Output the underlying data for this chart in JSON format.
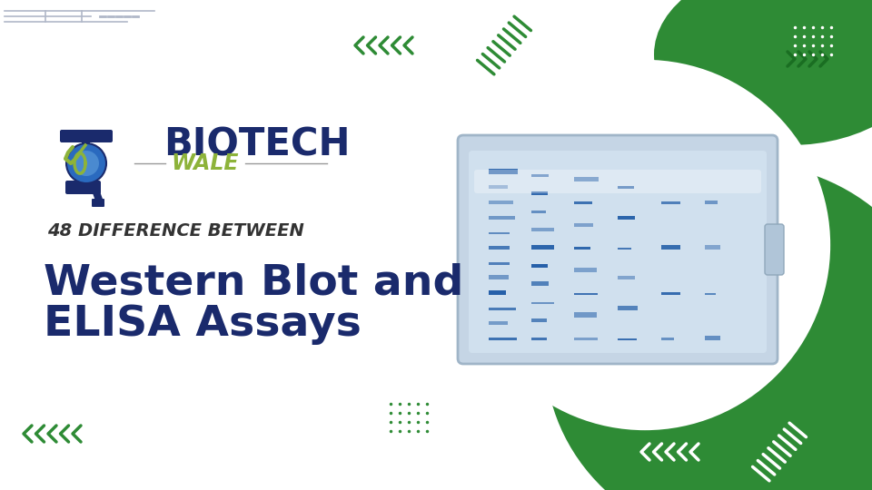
{
  "bg_color": "#ffffff",
  "green_color": "#2e8b35",
  "navy_color": "#1a2a6c",
  "olive_color": "#8db33a",
  "title_line1": "48 DIFFERENCE BETWEEN",
  "title_line2": "Western Blot and",
  "title_line3": "ELISA Assays",
  "brand_name": "BIOTECH",
  "brand_sub": "WALE",
  "title_line1_color": "#333333",
  "title_line2_color": "#1a2a6c",
  "title_line3_color": "#1a2a6c",
  "brand_color": "#1a2a6c",
  "brand_sub_color": "#8db33a"
}
